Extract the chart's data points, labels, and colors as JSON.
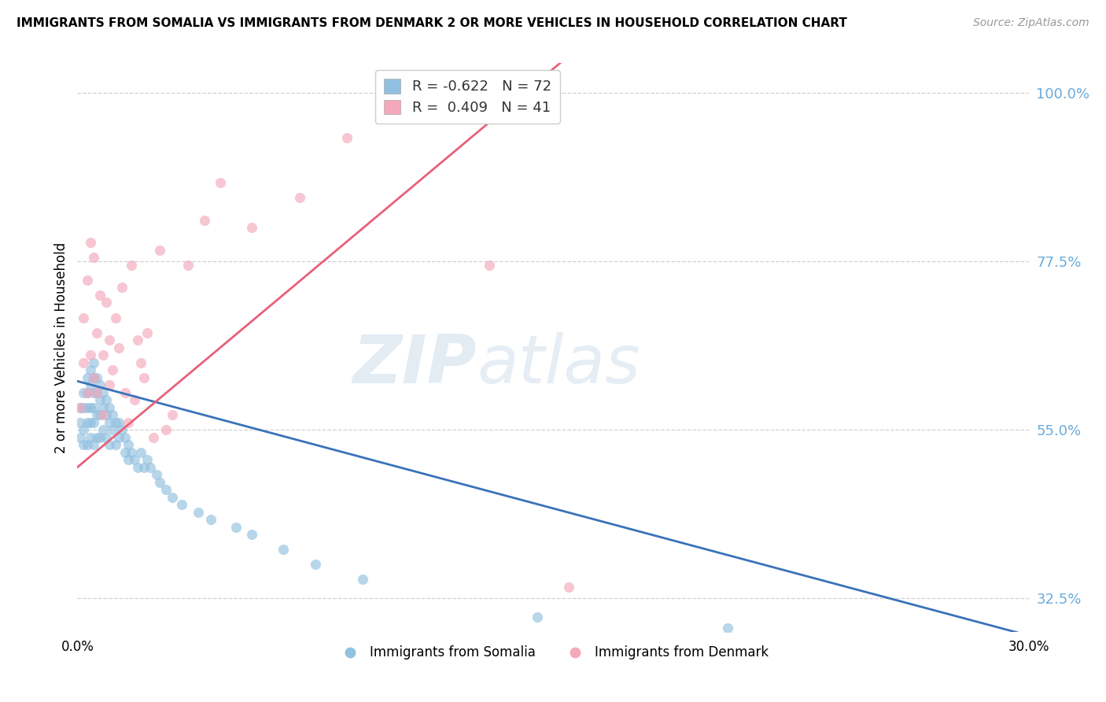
{
  "title": "IMMIGRANTS FROM SOMALIA VS IMMIGRANTS FROM DENMARK 2 OR MORE VEHICLES IN HOUSEHOLD CORRELATION CHART",
  "source": "Source: ZipAtlas.com",
  "ylabel": "2 or more Vehicles in Household",
  "xlim": [
    0.0,
    0.3
  ],
  "ylim": [
    0.28,
    1.04
  ],
  "watermark_zip": "ZIP",
  "watermark_atlas": "atlas",
  "legend_somalia_r": "R = -0.622",
  "legend_somalia_n": "N = 72",
  "legend_denmark_r": "R =  0.409",
  "legend_denmark_n": "N = 41",
  "somalia_color": "#92c0e0",
  "denmark_color": "#f4a8bc",
  "somalia_line_color": "#3a72b8",
  "denmark_line_color": "#e8607a",
  "background_color": "#ffffff",
  "grid_color": "#cccccc",
  "ytick_color": "#6aabdb",
  "somalia_scatter_x": [
    0.001,
    0.001,
    0.001,
    0.002,
    0.002,
    0.002,
    0.002,
    0.003,
    0.003,
    0.003,
    0.003,
    0.003,
    0.004,
    0.004,
    0.004,
    0.004,
    0.004,
    0.005,
    0.005,
    0.005,
    0.005,
    0.005,
    0.005,
    0.006,
    0.006,
    0.006,
    0.006,
    0.007,
    0.007,
    0.007,
    0.007,
    0.008,
    0.008,
    0.008,
    0.009,
    0.009,
    0.009,
    0.01,
    0.01,
    0.01,
    0.011,
    0.011,
    0.012,
    0.012,
    0.013,
    0.013,
    0.014,
    0.015,
    0.015,
    0.016,
    0.016,
    0.017,
    0.018,
    0.019,
    0.02,
    0.021,
    0.022,
    0.023,
    0.025,
    0.026,
    0.028,
    0.03,
    0.033,
    0.038,
    0.042,
    0.05,
    0.055,
    0.065,
    0.075,
    0.09,
    0.145,
    0.205
  ],
  "somalia_scatter_y": [
    0.58,
    0.56,
    0.54,
    0.6,
    0.58,
    0.55,
    0.53,
    0.62,
    0.6,
    0.58,
    0.56,
    0.53,
    0.63,
    0.61,
    0.58,
    0.56,
    0.54,
    0.64,
    0.62,
    0.6,
    0.58,
    0.56,
    0.53,
    0.62,
    0.6,
    0.57,
    0.54,
    0.61,
    0.59,
    0.57,
    0.54,
    0.6,
    0.58,
    0.55,
    0.59,
    0.57,
    0.54,
    0.58,
    0.56,
    0.53,
    0.57,
    0.55,
    0.56,
    0.53,
    0.56,
    0.54,
    0.55,
    0.54,
    0.52,
    0.53,
    0.51,
    0.52,
    0.51,
    0.5,
    0.52,
    0.5,
    0.51,
    0.5,
    0.49,
    0.48,
    0.47,
    0.46,
    0.45,
    0.44,
    0.43,
    0.42,
    0.41,
    0.39,
    0.37,
    0.35,
    0.3,
    0.285
  ],
  "denmark_scatter_x": [
    0.001,
    0.002,
    0.002,
    0.003,
    0.003,
    0.004,
    0.004,
    0.005,
    0.005,
    0.006,
    0.006,
    0.007,
    0.008,
    0.008,
    0.009,
    0.01,
    0.01,
    0.011,
    0.012,
    0.013,
    0.014,
    0.015,
    0.016,
    0.017,
    0.018,
    0.019,
    0.02,
    0.021,
    0.022,
    0.024,
    0.026,
    0.028,
    0.03,
    0.035,
    0.04,
    0.045,
    0.055,
    0.07,
    0.085,
    0.13,
    0.155
  ],
  "denmark_scatter_y": [
    0.58,
    0.64,
    0.7,
    0.6,
    0.75,
    0.65,
    0.8,
    0.62,
    0.78,
    0.6,
    0.68,
    0.73,
    0.57,
    0.65,
    0.72,
    0.61,
    0.67,
    0.63,
    0.7,
    0.66,
    0.74,
    0.6,
    0.56,
    0.77,
    0.59,
    0.67,
    0.64,
    0.62,
    0.68,
    0.54,
    0.79,
    0.55,
    0.57,
    0.77,
    0.83,
    0.88,
    0.82,
    0.86,
    0.94,
    0.77,
    0.34
  ]
}
